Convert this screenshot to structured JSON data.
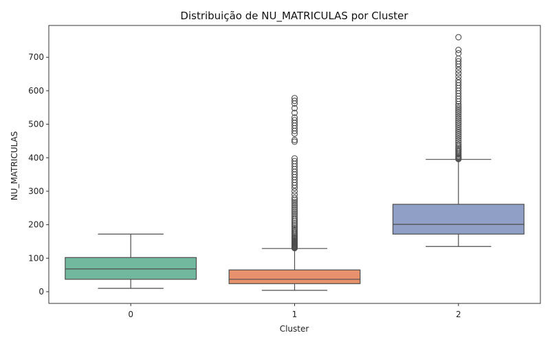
{
  "chart_data": {
    "type": "box",
    "title": "Distribuição de NU_MATRICULAS por Cluster",
    "xlabel": "Cluster",
    "ylabel": "NU_MATRICULAS",
    "ylim": [
      -35,
      795
    ],
    "yticks": [
      0,
      100,
      200,
      300,
      400,
      500,
      600,
      700
    ],
    "categories": [
      "0",
      "1",
      "2"
    ],
    "grid": false,
    "series": [
      {
        "category": "0",
        "color": "#72b89f",
        "whisker_low": 10,
        "q1": 37,
        "median": 68,
        "q3": 102,
        "whisker_high": 172,
        "outliers": []
      },
      {
        "category": "1",
        "color": "#e8916d",
        "whisker_low": 4,
        "q1": 24,
        "median": 37,
        "q3": 65,
        "whisker_high": 129,
        "outliers": [
          130,
          132,
          134,
          136,
          138,
          140,
          142,
          144,
          146,
          148,
          150,
          152,
          155,
          158,
          160,
          163,
          166,
          170,
          174,
          178,
          182,
          186,
          190,
          195,
          200,
          205,
          210,
          215,
          220,
          226,
          232,
          238,
          244,
          250,
          256,
          262,
          268,
          274,
          280,
          290,
          300,
          310,
          318,
          326,
          334,
          342,
          350,
          358,
          366,
          374,
          382,
          390,
          398,
          448,
          453,
          472,
          480,
          488,
          496,
          504,
          512,
          520,
          534,
          548,
          562,
          570,
          578
        ]
      },
      {
        "category": "2",
        "color": "#909fc5",
        "whisker_low": 135,
        "q1": 172,
        "median": 201,
        "q3": 261,
        "whisker_high": 395,
        "outliers": [
          396,
          398,
          400,
          403,
          406,
          410,
          414,
          418,
          422,
          426,
          430,
          435,
          440,
          446,
          452,
          458,
          464,
          470,
          476,
          482,
          488,
          494,
          500,
          506,
          512,
          518,
          524,
          530,
          536,
          542,
          548,
          554,
          560,
          568,
          576,
          584,
          592,
          600,
          608,
          616,
          624,
          632,
          642,
          652,
          662,
          672,
          680,
          688,
          696,
          712,
          722,
          760
        ]
      }
    ]
  }
}
